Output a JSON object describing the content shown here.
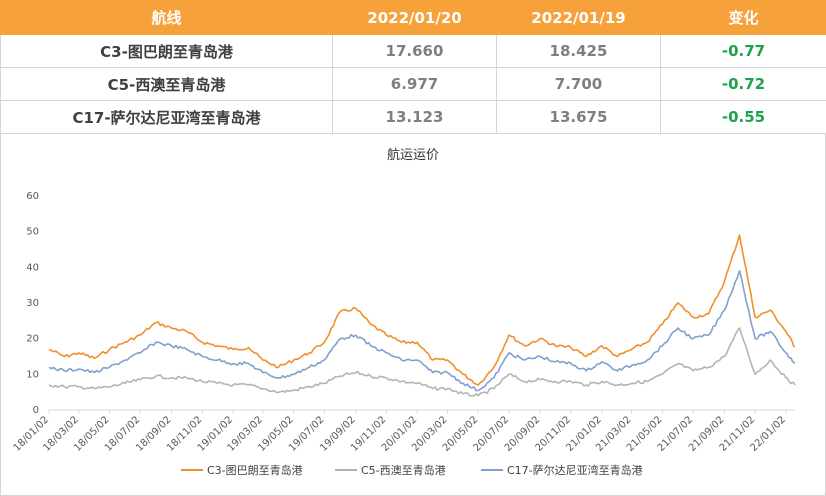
{
  "table": {
    "headers": [
      "航线",
      "2022/01/20",
      "2022/01/19",
      "变化"
    ],
    "rows": [
      {
        "route": "C3-图巴朗至青岛港",
        "d1": "17.660",
        "d2": "18.425",
        "change": "-0.77"
      },
      {
        "route": "C5-西澳至青岛港",
        "d1": "6.977",
        "d2": "7.700",
        "change": "-0.72"
      },
      {
        "route": "C17-萨尔达尼亚湾至青岛港",
        "d1": "13.123",
        "d2": "13.675",
        "change": "-0.55"
      }
    ]
  },
  "colors": {
    "header_bg": "#f7a13a",
    "c3": "#f28e2b",
    "c5": "#b4b4b4",
    "c17": "#7ea1cf",
    "change": "#1aa34a"
  },
  "chart_data": {
    "type": "line",
    "title": "航运运价",
    "xlabel": "",
    "ylabel": "",
    "ylim": [
      0,
      60
    ],
    "yticks": [
      0,
      10,
      20,
      30,
      40,
      50,
      60
    ],
    "grid": false,
    "legend_position": "bottom",
    "x_ticks": [
      "18/01/02",
      "18/03/02",
      "18/05/02",
      "18/07/02",
      "18/09/02",
      "18/11/02",
      "19/01/02",
      "19/03/02",
      "19/05/02",
      "19/07/02",
      "19/09/02",
      "19/11/02",
      "20/01/02",
      "20/03/02",
      "20/05/02",
      "20/07/02",
      "20/09/02",
      "20/11/02",
      "21/01/02",
      "21/03/02",
      "21/05/02",
      "21/07/02",
      "21/09/02",
      "21/11/02",
      "22/01/02"
    ],
    "x_end": "22/01/20",
    "series": [
      {
        "name": "C3-图巴朗至青岛港",
        "color": "#f28e2b",
        "points": [
          [
            "18/01/02",
            17
          ],
          [
            "18/02/02",
            15
          ],
          [
            "18/03/02",
            16
          ],
          [
            "18/04/02",
            14.5
          ],
          [
            "18/05/02",
            17
          ],
          [
            "18/06/02",
            19
          ],
          [
            "18/07/02",
            21
          ],
          [
            "18/08/02",
            24.5
          ],
          [
            "18/09/02",
            23
          ],
          [
            "18/10/02",
            22
          ],
          [
            "18/11/02",
            19
          ],
          [
            "18/12/02",
            18
          ],
          [
            "19/01/02",
            17
          ],
          [
            "19/02/02",
            17.5
          ],
          [
            "19/03/02",
            14
          ],
          [
            "19/04/02",
            12
          ],
          [
            "19/05/02",
            14
          ],
          [
            "19/06/02",
            16
          ],
          [
            "19/07/02",
            19
          ],
          [
            "19/08/02",
            27.5
          ],
          [
            "19/09/02",
            28.5
          ],
          [
            "19/10/02",
            24
          ],
          [
            "19/11/02",
            21
          ],
          [
            "19/12/02",
            19
          ],
          [
            "20/01/02",
            19
          ],
          [
            "20/02/02",
            14
          ],
          [
            "20/03/02",
            14
          ],
          [
            "20/04/02",
            10
          ],
          [
            "20/05/02",
            7
          ],
          [
            "20/06/02",
            12
          ],
          [
            "20/07/02",
            21
          ],
          [
            "20/08/02",
            18
          ],
          [
            "20/09/02",
            20
          ],
          [
            "20/10/02",
            18
          ],
          [
            "20/11/02",
            17.5
          ],
          [
            "20/12/02",
            15
          ],
          [
            "21/01/02",
            18
          ],
          [
            "21/02/02",
            15
          ],
          [
            "21/03/02",
            17
          ],
          [
            "21/04/02",
            19
          ],
          [
            "21/05/02",
            24
          ],
          [
            "21/06/02",
            30
          ],
          [
            "21/07/02",
            26
          ],
          [
            "21/08/02",
            27
          ],
          [
            "21/09/02",
            36
          ],
          [
            "21/10/02",
            49
          ],
          [
            "21/11/02",
            26
          ],
          [
            "21/12/02",
            28
          ],
          [
            "22/01/02",
            22
          ],
          [
            "22/01/20",
            17.66
          ]
        ]
      },
      {
        "name": "C5-西澳至青岛港",
        "color": "#b4b4b4",
        "points": [
          [
            "18/01/02",
            7
          ],
          [
            "18/02/02",
            6.5
          ],
          [
            "18/03/02",
            6.5
          ],
          [
            "18/04/02",
            6
          ],
          [
            "18/05/02",
            6.5
          ],
          [
            "18/06/02",
            7.5
          ],
          [
            "18/07/02",
            8.5
          ],
          [
            "18/08/02",
            9.5
          ],
          [
            "18/09/02",
            9
          ],
          [
            "18/10/02",
            9
          ],
          [
            "18/11/02",
            8
          ],
          [
            "18/12/02",
            7.5
          ],
          [
            "19/01/02",
            7
          ],
          [
            "19/02/02",
            7
          ],
          [
            "19/03/02",
            6
          ],
          [
            "19/04/02",
            5
          ],
          [
            "19/05/02",
            5.5
          ],
          [
            "19/06/02",
            6.5
          ],
          [
            "19/07/02",
            7.5
          ],
          [
            "19/08/02",
            9.5
          ],
          [
            "19/09/02",
            10.5
          ],
          [
            "19/10/02",
            9.5
          ],
          [
            "19/11/02",
            9
          ],
          [
            "19/12/02",
            8
          ],
          [
            "20/01/02",
            7.5
          ],
          [
            "20/02/02",
            6
          ],
          [
            "20/03/02",
            6
          ],
          [
            "20/04/02",
            4.5
          ],
          [
            "20/05/02",
            4
          ],
          [
            "20/06/02",
            6
          ],
          [
            "20/07/02",
            10
          ],
          [
            "20/08/02",
            8
          ],
          [
            "20/09/02",
            8.5
          ],
          [
            "20/10/02",
            8
          ],
          [
            "20/11/02",
            8
          ],
          [
            "20/12/02",
            7
          ],
          [
            "21/01/02",
            8
          ],
          [
            "21/02/02",
            7
          ],
          [
            "21/03/02",
            7.5
          ],
          [
            "21/04/02",
            8
          ],
          [
            "21/05/02",
            10
          ],
          [
            "21/06/02",
            13
          ],
          [
            "21/07/02",
            11
          ],
          [
            "21/08/02",
            12
          ],
          [
            "21/09/02",
            15
          ],
          [
            "21/10/02",
            23
          ],
          [
            "21/11/02",
            10
          ],
          [
            "21/12/02",
            14
          ],
          [
            "22/01/02",
            9
          ],
          [
            "22/01/20",
            6.977
          ]
        ]
      },
      {
        "name": "C17-萨尔达尼亚湾至青岛港",
        "color": "#7ea1cf",
        "points": [
          [
            "18/01/02",
            12
          ],
          [
            "18/02/02",
            11
          ],
          [
            "18/03/02",
            11.5
          ],
          [
            "18/04/02",
            10.5
          ],
          [
            "18/05/02",
            12
          ],
          [
            "18/06/02",
            14
          ],
          [
            "18/07/02",
            16
          ],
          [
            "18/08/02",
            19
          ],
          [
            "18/09/02",
            18
          ],
          [
            "18/10/02",
            17
          ],
          [
            "18/11/02",
            15
          ],
          [
            "18/12/02",
            14
          ],
          [
            "19/01/02",
            13
          ],
          [
            "19/02/02",
            13
          ],
          [
            "19/03/02",
            10.5
          ],
          [
            "19/04/02",
            9
          ],
          [
            "19/05/02",
            10
          ],
          [
            "19/06/02",
            12
          ],
          [
            "19/07/02",
            14
          ],
          [
            "19/08/02",
            20
          ],
          [
            "19/09/02",
            21
          ],
          [
            "19/10/02",
            18
          ],
          [
            "19/11/02",
            16
          ],
          [
            "19/12/02",
            14
          ],
          [
            "20/01/02",
            14
          ],
          [
            "20/02/02",
            10.5
          ],
          [
            "20/03/02",
            10.5
          ],
          [
            "20/04/02",
            7.5
          ],
          [
            "20/05/02",
            5.5
          ],
          [
            "20/06/02",
            9
          ],
          [
            "20/07/02",
            16
          ],
          [
            "20/08/02",
            14
          ],
          [
            "20/09/02",
            15
          ],
          [
            "20/10/02",
            13.5
          ],
          [
            "20/11/02",
            13
          ],
          [
            "20/12/02",
            11
          ],
          [
            "21/01/02",
            13.5
          ],
          [
            "21/02/02",
            11
          ],
          [
            "21/03/02",
            12.5
          ],
          [
            "21/04/02",
            14
          ],
          [
            "21/05/02",
            18
          ],
          [
            "21/06/02",
            23
          ],
          [
            "21/07/02",
            20
          ],
          [
            "21/08/02",
            21
          ],
          [
            "21/09/02",
            28
          ],
          [
            "21/10/02",
            39
          ],
          [
            "21/11/02",
            20
          ],
          [
            "21/12/02",
            22
          ],
          [
            "22/01/02",
            16
          ],
          [
            "22/01/20",
            13.123
          ]
        ]
      }
    ]
  }
}
